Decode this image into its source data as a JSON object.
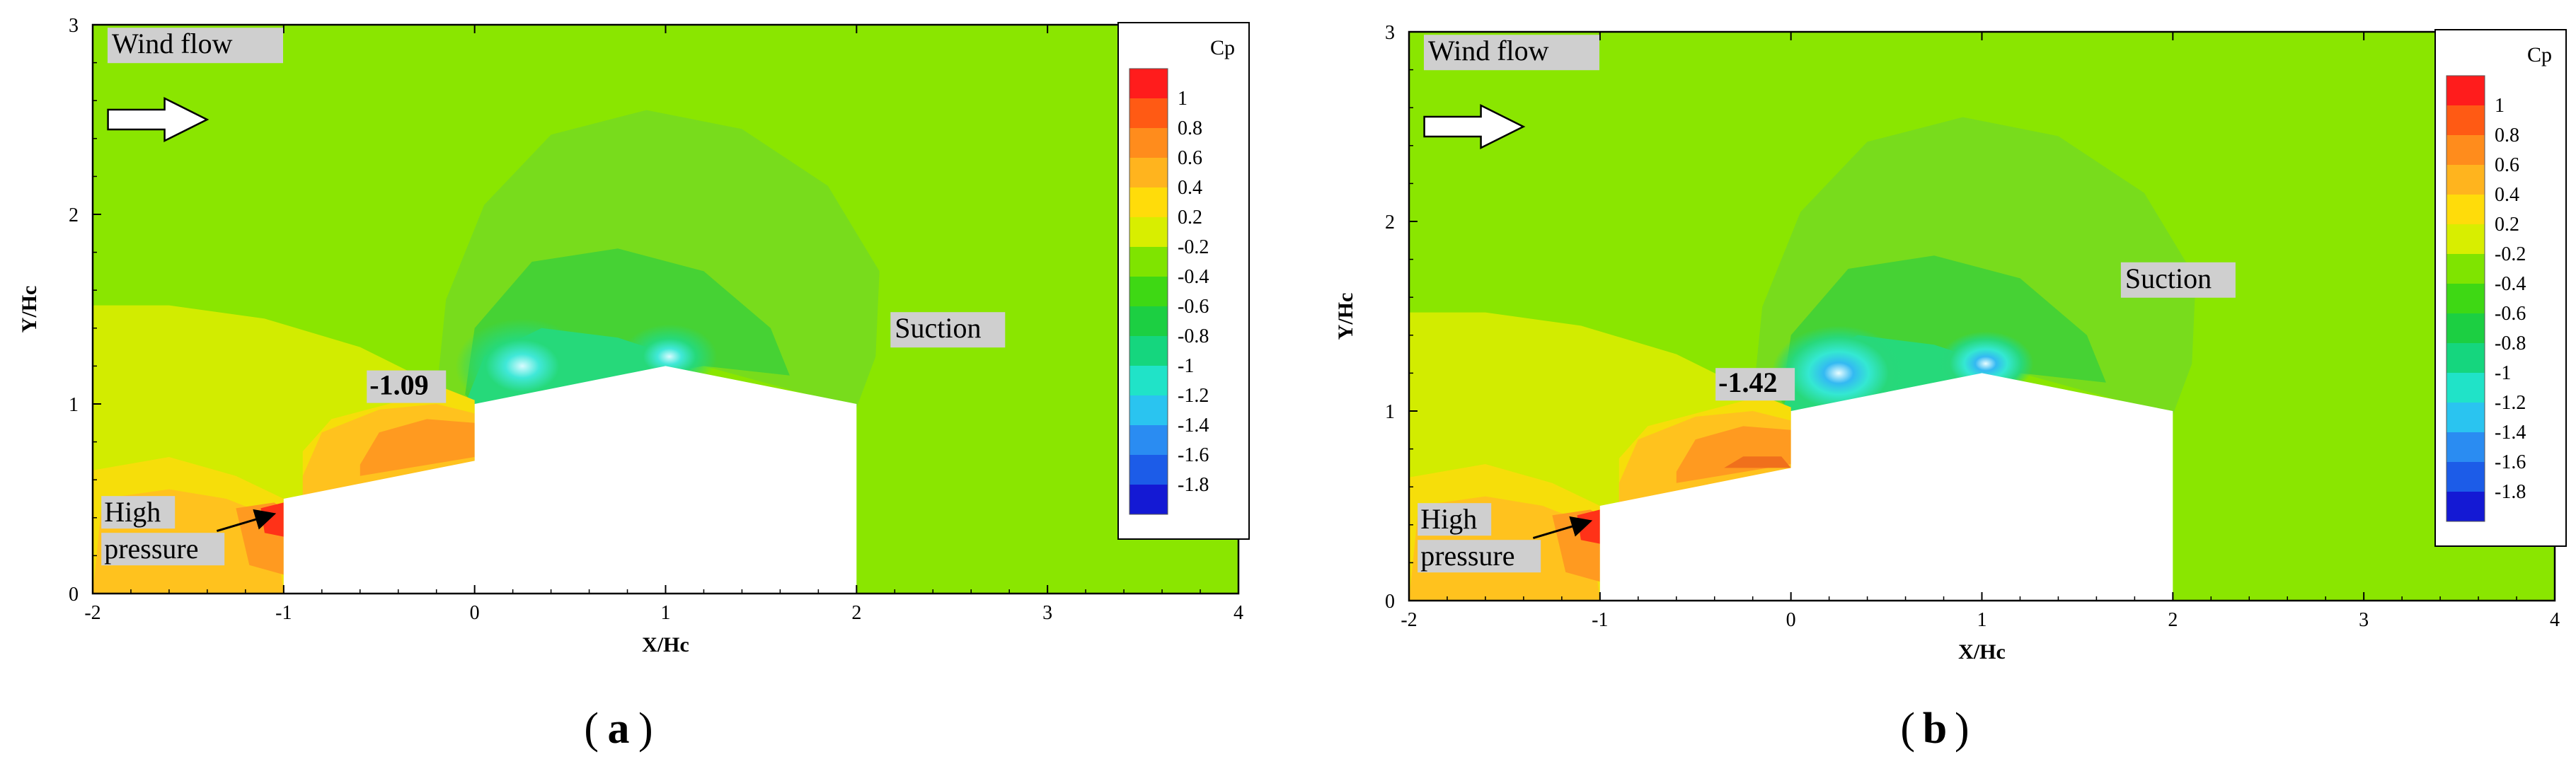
{
  "chart_data": [
    {
      "type": "heatmap",
      "panel_label": "a",
      "title": "",
      "xlabel": "X/Hc",
      "ylabel": "Y/Hc",
      "xlim": [
        -2,
        4
      ],
      "ylim": [
        0,
        3
      ],
      "x_ticks": [
        "-2",
        "-1",
        "0",
        "1",
        "2",
        "3",
        "4"
      ],
      "y_ticks": [
        "0",
        "1",
        "2",
        "3"
      ],
      "colorbar": {
        "title": "Cp",
        "labels": [
          "1",
          "0.8",
          "0.6",
          "0.4",
          "0.2",
          "-0.2",
          "-0.4",
          "-0.6",
          "-0.8",
          "-1",
          "-1.2",
          "-1.4",
          "-1.6",
          "-1.8"
        ]
      },
      "annotations": {
        "wind": "Wind flow",
        "min_cp": "-1.09",
        "suction": "Suction",
        "high_line1": "High",
        "high_line2": "pressure"
      }
    },
    {
      "type": "heatmap",
      "panel_label": "b",
      "title": "",
      "xlabel": "X/Hc",
      "ylabel": "Y/Hc",
      "xlim": [
        -2,
        4
      ],
      "ylim": [
        0,
        3
      ],
      "x_ticks": [
        "-2",
        "-1",
        "0",
        "1",
        "2",
        "3",
        "4"
      ],
      "y_ticks": [
        "0",
        "1",
        "2",
        "3"
      ],
      "colorbar": {
        "title": "Cp",
        "labels": [
          "1",
          "0.8",
          "0.6",
          "0.4",
          "0.2",
          "-0.2",
          "-0.4",
          "-0.6",
          "-0.8",
          "-1",
          "-1.2",
          "-1.4",
          "-1.6",
          "-1.8"
        ]
      },
      "annotations": {
        "wind": "Wind flow",
        "min_cp": "-1.42",
        "suction": "Suction",
        "high_line1": "High",
        "high_line2": "pressure"
      }
    }
  ],
  "colors": {
    "background_field": "#8ae600",
    "colorbar_bands": [
      "#ff1c1c",
      "#ff5a14",
      "#ff8c1c",
      "#ffb41e",
      "#ffdc0a",
      "#d8ee00",
      "#7fe400",
      "#3ed814",
      "#1ccf42",
      "#15d67e",
      "#20e3c8",
      "#2ac4f0",
      "#2a8cf2",
      "#1c5ce8",
      "#1419d4"
    ]
  }
}
